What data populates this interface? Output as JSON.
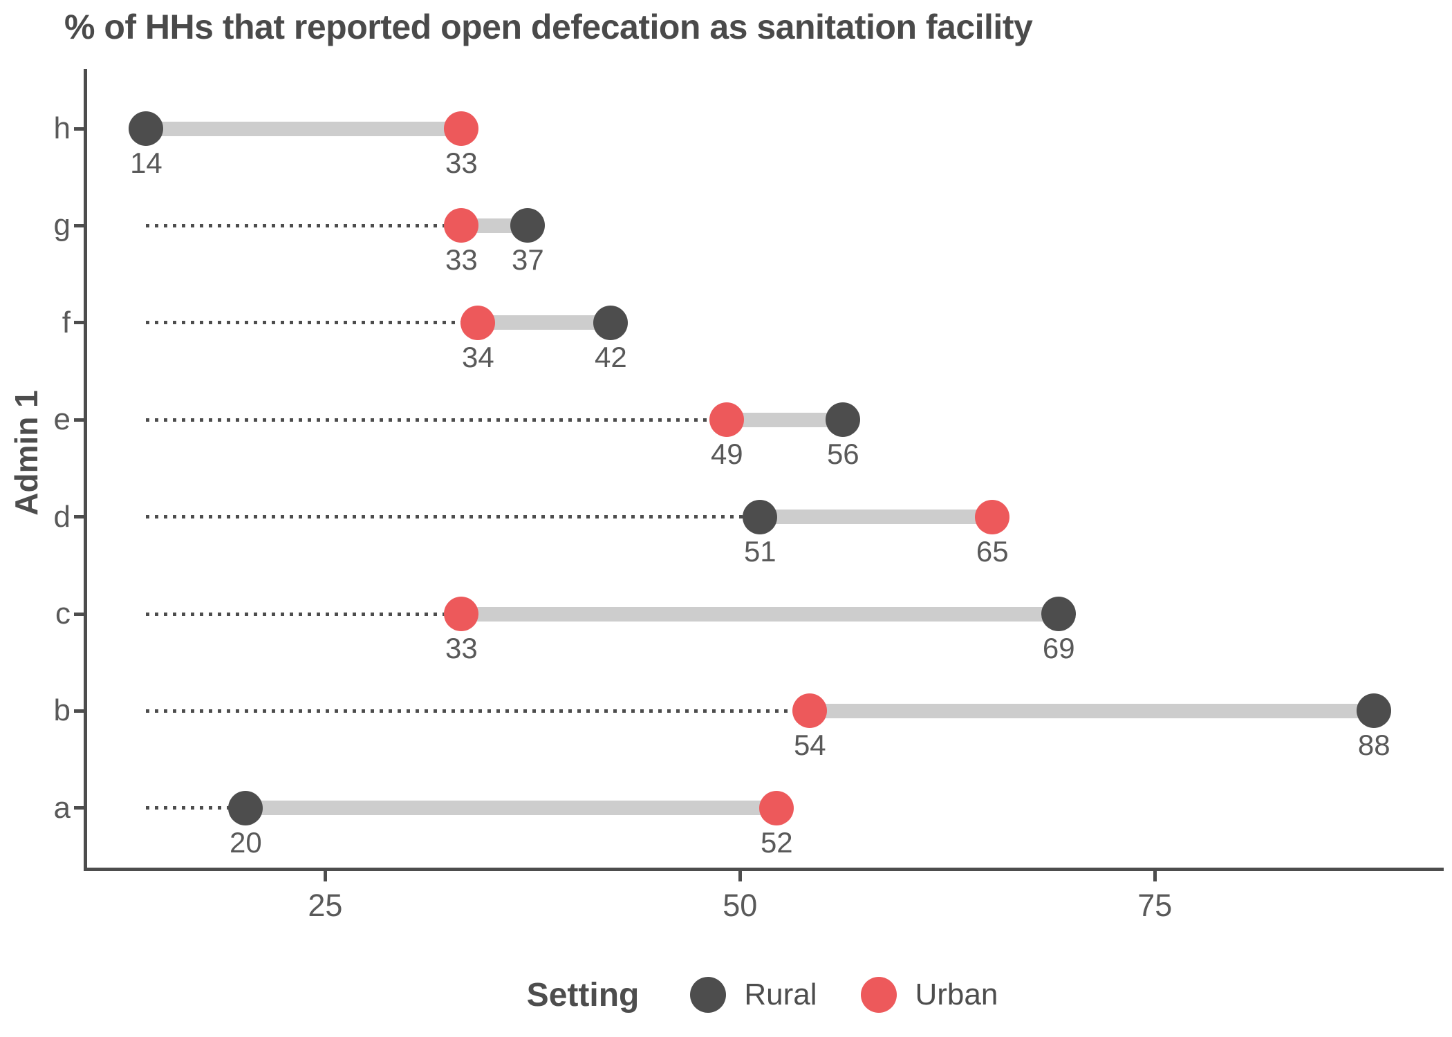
{
  "chart_data": {
    "type": "dumbbell",
    "title": "% of HHs that reported open defecation as sanitation facility",
    "xlabel": "",
    "ylabel": "Admin 1",
    "x_ticks": [
      25,
      50,
      75
    ],
    "x_domain": [
      10.44,
      92.2
    ],
    "grid": "off",
    "leader_start": 14,
    "categories": [
      "h",
      "g",
      "f",
      "e",
      "d",
      "c",
      "b",
      "a"
    ],
    "series": [
      {
        "name": "Rural",
        "color": "#4d4d4d",
        "values": [
          14,
          37,
          42,
          56,
          51,
          69,
          88,
          20
        ]
      },
      {
        "name": "Urban",
        "color": "#ed595b",
        "values": [
          33,
          33,
          34,
          49,
          65,
          33,
          54,
          52
        ]
      }
    ],
    "legend": {
      "title": "Setting",
      "position": "bottom"
    },
    "styles": {
      "connector_color": "#cdcdcd",
      "leader_color": "#4d4d4d",
      "axis_color": "#4d4d4d",
      "label_color": "#595959",
      "title_color": "#4a4a4a"
    }
  }
}
